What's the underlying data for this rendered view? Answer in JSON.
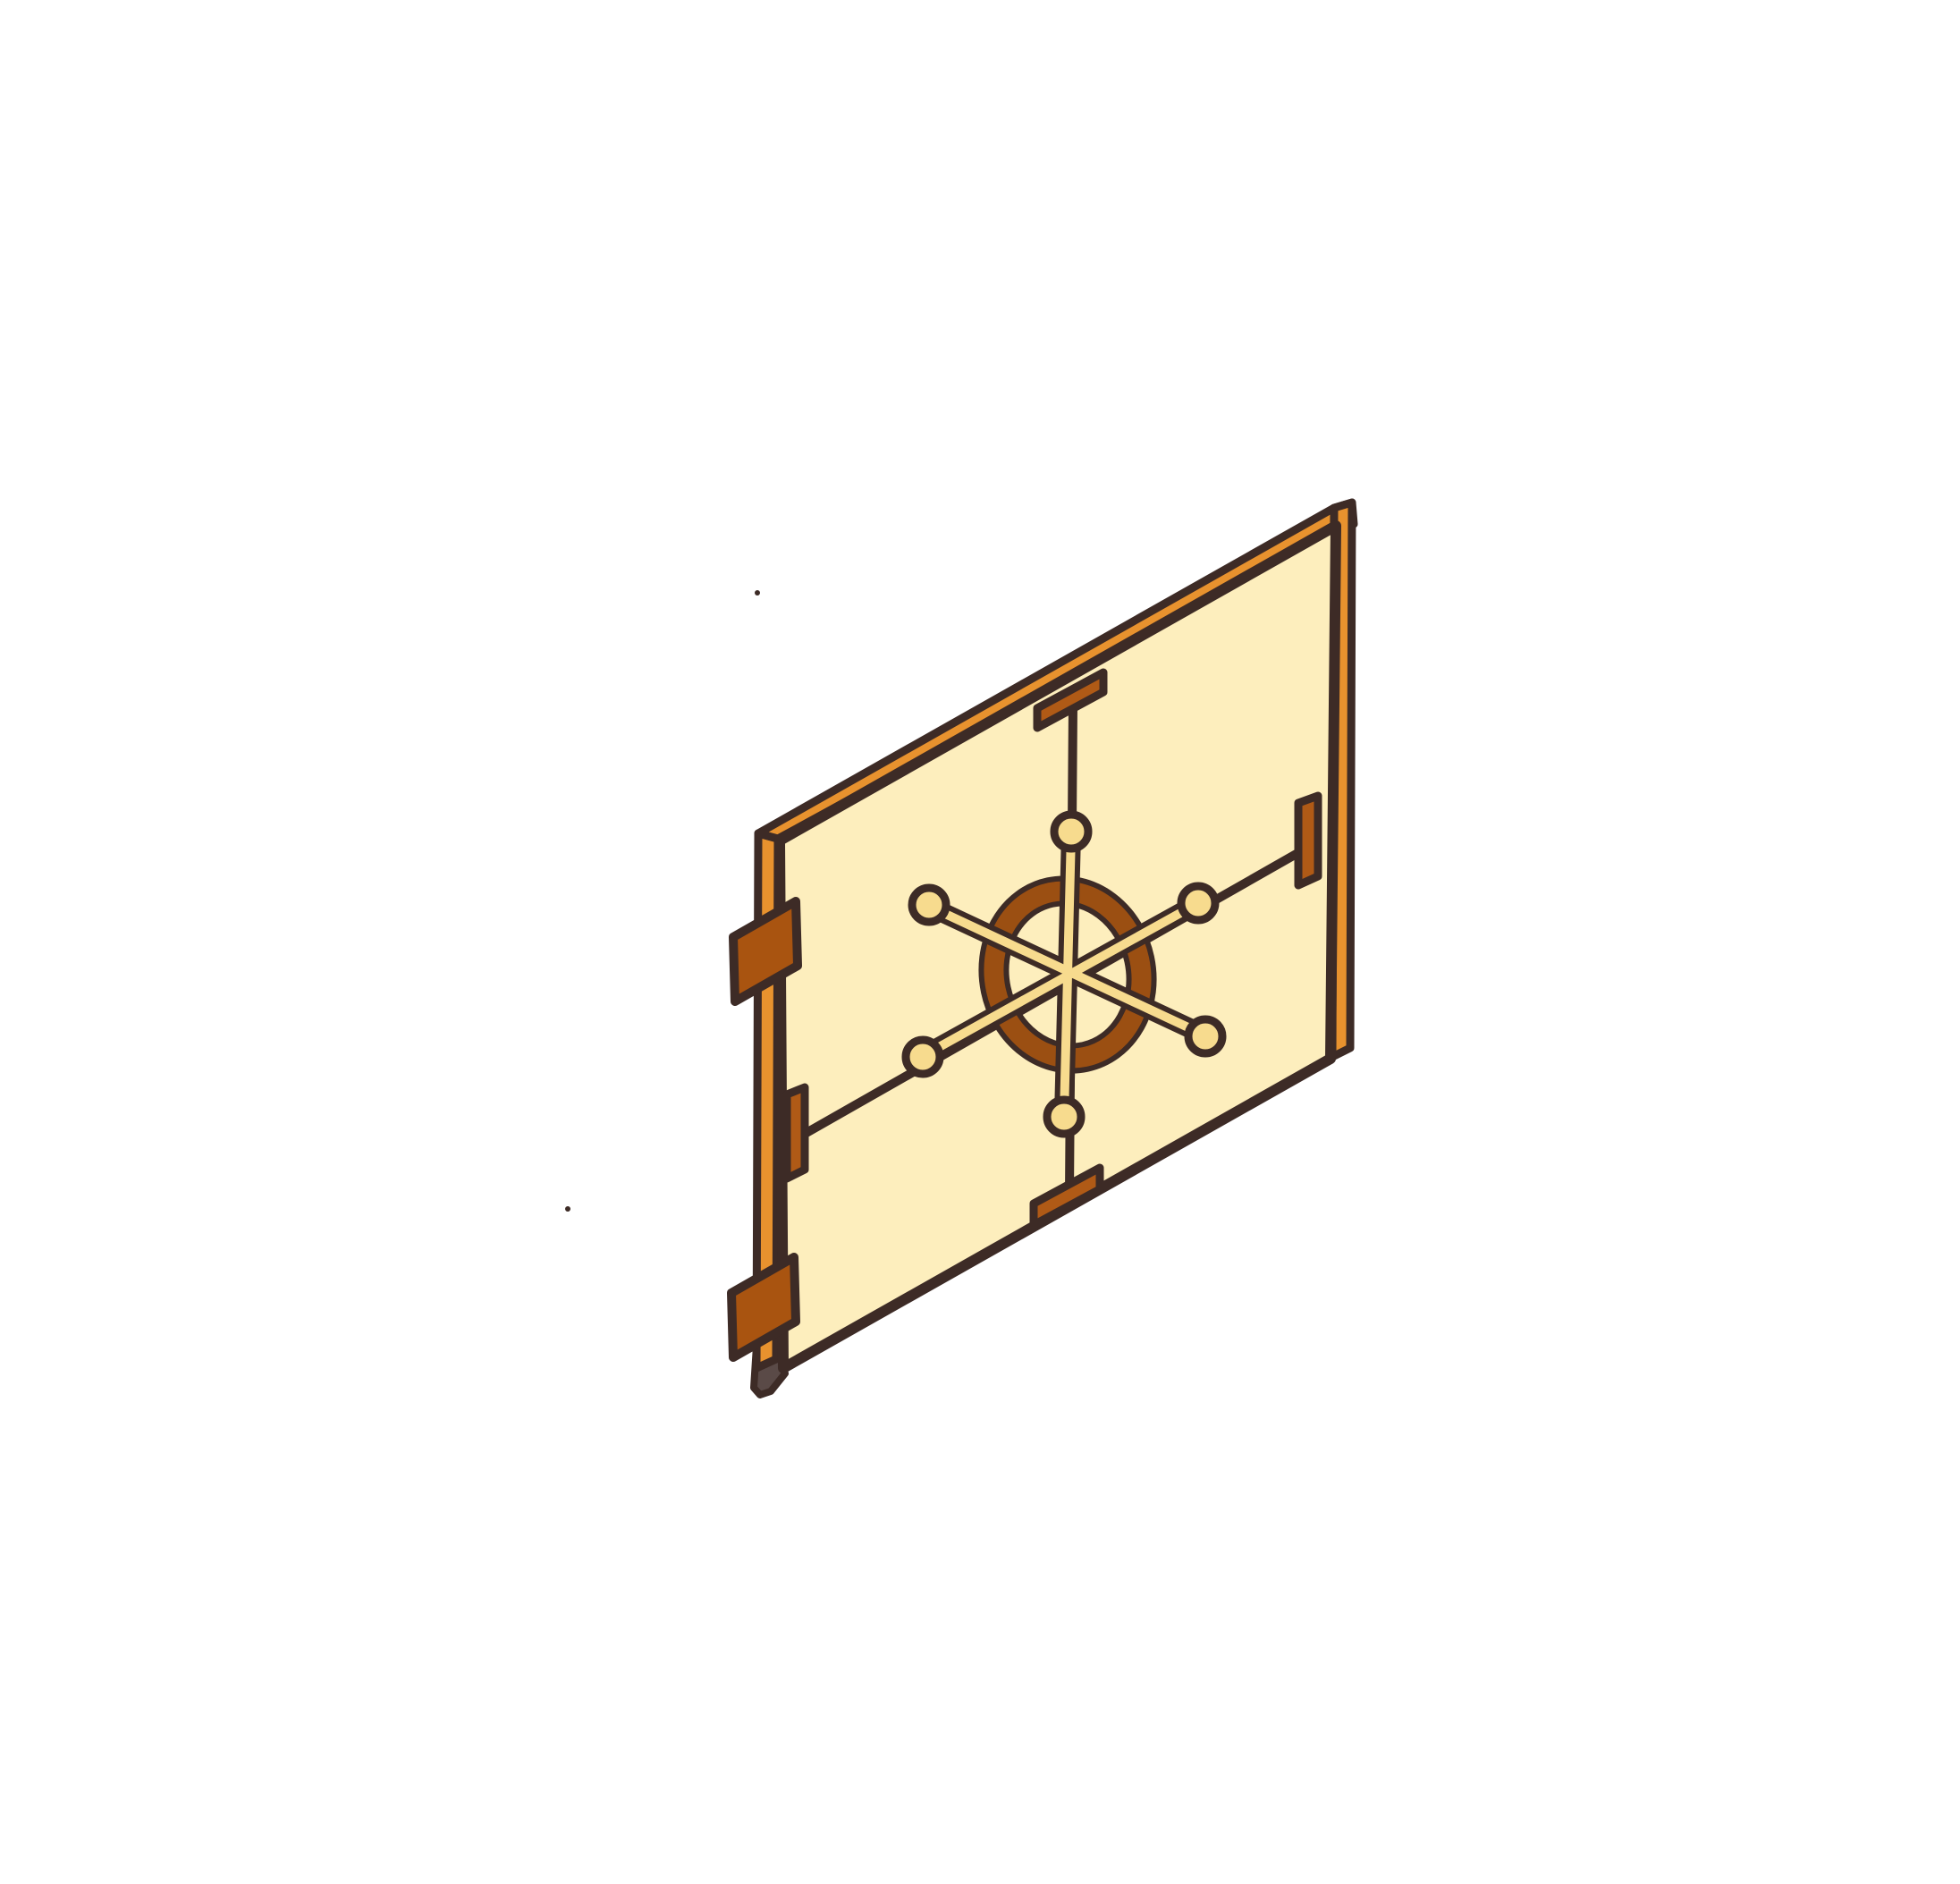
{
  "illustration": {
    "subject": "vault-door-icon",
    "colors": {
      "background": "#ffffff",
      "outline": "#3d2b26",
      "panel_fill": "#fdeebd",
      "frame_orange": "#e8922e",
      "hinge_brown": "#a95410",
      "lock_ring": "#9b4f12",
      "wheel_gold": "#f7db8e",
      "handle_tab": "#b05a16",
      "post_gray": "#5a4a47"
    }
  }
}
